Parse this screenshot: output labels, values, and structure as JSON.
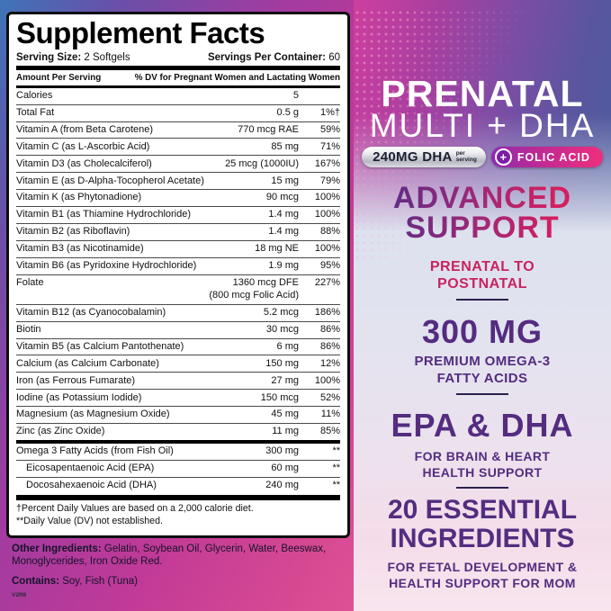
{
  "facts": {
    "title": "Supplement Facts",
    "serving_size_label": "Serving Size:",
    "serving_size_value": "2 Softgels",
    "servings_per_container_label": "Servings Per Container:",
    "servings_per_container_value": "60",
    "col_amount": "Amount Per Serving",
    "col_dv": "% DV for Pregnant Women and Lactating Women",
    "rows": [
      {
        "name": "Calories",
        "amount": "5",
        "dv": ""
      },
      {
        "name": "Total Fat",
        "amount": "0.5 g",
        "dv": "1%†"
      },
      {
        "name": "Vitamin A (from Beta Carotene)",
        "amount": "770 mcg RAE",
        "dv": "59%"
      },
      {
        "name": "Vitamin C (as L-Ascorbic Acid)",
        "amount": "85 mg",
        "dv": "71%"
      },
      {
        "name": "Vitamin D3 (as Cholecalciferol)",
        "amount": "25 mcg (1000IU)",
        "dv": "167%"
      },
      {
        "name": "Vitamin E (as D-Alpha-Tocopherol Acetate)",
        "amount": "15 mg",
        "dv": "79%"
      },
      {
        "name": "Vitamin K (as Phytonadione)",
        "amount": "90 mcg",
        "dv": "100%"
      },
      {
        "name": "Vitamin B1 (as Thiamine Hydrochloride)",
        "amount": "1.4 mg",
        "dv": "100%"
      },
      {
        "name": "Vitamin B2 (as Riboflavin)",
        "amount": "1.4 mg",
        "dv": "88%"
      },
      {
        "name": "Vitamin B3 (as Nicotinamide)",
        "amount": "18 mg NE",
        "dv": "100%"
      },
      {
        "name": "Vitamin B6 (as Pyridoxine Hydrochloride)",
        "amount": "1.9 mg",
        "dv": "95%"
      },
      {
        "name": "Folate",
        "amount": "1360 mcg DFE",
        "amount2": "(800 mcg Folic Acid)",
        "dv": "227%"
      },
      {
        "name": "Vitamin B12 (as Cyanocobalamin)",
        "amount": "5.2 mcg",
        "dv": "186%"
      },
      {
        "name": "Biotin",
        "amount": "30 mcg",
        "dv": "86%"
      },
      {
        "name": "Vitamin B5 (as Calcium Pantothenate)",
        "amount": "6 mg",
        "dv": "86%"
      },
      {
        "name": "Calcium (as Calcium Carbonate)",
        "amount": "150 mg",
        "dv": "12%"
      },
      {
        "name": "Iron (as Ferrous Fumarate)",
        "amount": "27 mg",
        "dv": "100%"
      },
      {
        "name": "Iodine (as Potassium Iodide)",
        "amount": "150 mcg",
        "dv": "52%"
      },
      {
        "name": "Magnesium (as Magnesium Oxide)",
        "amount": "45 mg",
        "dv": "11%"
      },
      {
        "name": "Zinc (as Zinc Oxide)",
        "amount": "11 mg",
        "dv": "85%"
      }
    ],
    "omega_rows": [
      {
        "name": "Omega 3 Fatty Acids (from Fish Oil)",
        "amount": "300 mg",
        "dv": "**",
        "indent": false
      },
      {
        "name": "Eicosapentaenoic Acid (EPA)",
        "amount": "60 mg",
        "dv": "**",
        "indent": true
      },
      {
        "name": "Docosahexaenoic Acid (DHA)",
        "amount": "240 mg",
        "dv": "**",
        "indent": true
      }
    ],
    "footnote1": "†Percent Daily Values are based on a 2,000 calorie diet.",
    "footnote2": "**Daily Value (DV) not established."
  },
  "below": {
    "other_ingredients_label": "Other Ingredients:",
    "other_ingredients_value": " Gelatin, Soybean Oil, Glycerin, Water, Beeswax, Monoglycerides, Iron Oxide Red.",
    "contains_label": "Contains:",
    "contains_value": " Soy, Fish (Tuna)",
    "code": "V2R6"
  },
  "right": {
    "title_line1": "PRENATAL",
    "title_line2": "MULTI + DHA",
    "badge_dha_main": "240MG DHA",
    "badge_dha_sub_line1": "per",
    "badge_dha_sub_line2": "serving",
    "plus_glyph": "+",
    "badge_folic_label": "FOLIC ACID",
    "advanced_line1": "ADVANCED",
    "advanced_line2": "SUPPORT",
    "prenatal_line1": "PRENATAL TO",
    "prenatal_line2": "POSTNATAL",
    "mg_heading": "300 MG",
    "mg_sub_line1": "PREMIUM OMEGA-3",
    "mg_sub_line2": "FATTY ACIDS",
    "epa_heading": "EPA & DHA",
    "epa_sub_line1": "FOR BRAIN & HEART",
    "epa_sub_line2": "HEALTH SUPPORT",
    "essential_line1": "20 ESSENTIAL",
    "essential_line2": "INGREDIENTS",
    "essential_sub_line1": "FOR FETAL DEVELOPMENT &",
    "essential_sub_line2": "HEALTH SUPPORT FOR MOM",
    "colors": {
      "heading_purple": "#542c80",
      "accent_pink": "#c9235f",
      "gradient_start": "#5b2c86",
      "gradient_end": "#d61f5e",
      "capsule_red": "#d91c1c"
    }
  }
}
